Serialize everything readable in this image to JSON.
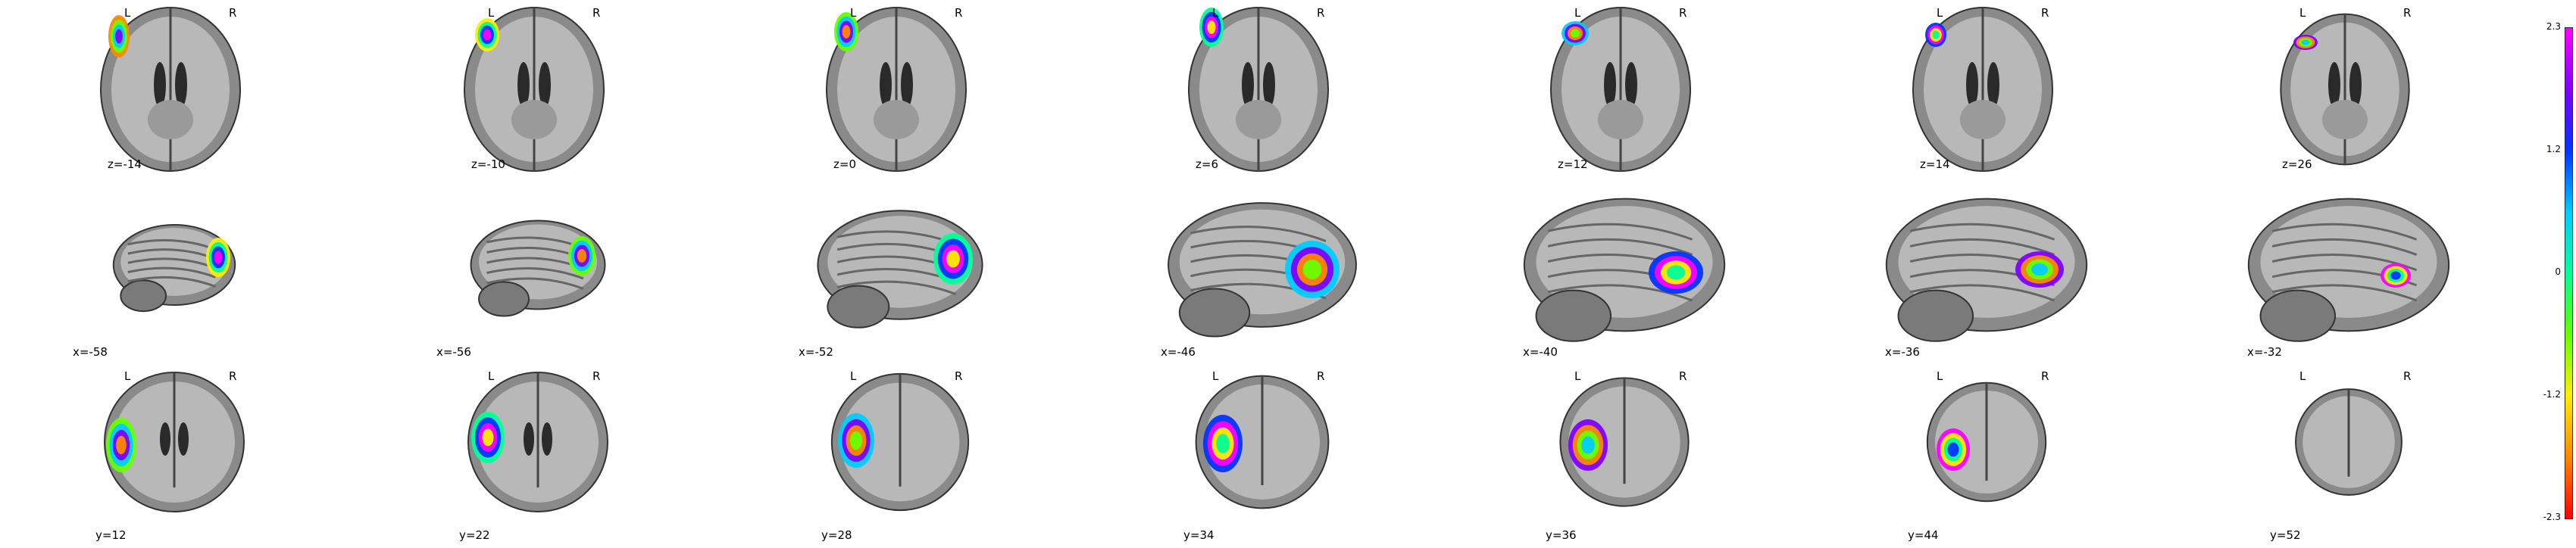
{
  "orientation_labels": {
    "left": "L",
    "right": "R"
  },
  "rows": [
    {
      "view": "axial",
      "show_lr": true,
      "cuts": [
        "z=-14",
        "z=-10",
        "z=0",
        "z=6",
        "z=12",
        "z=14",
        "z=26"
      ]
    },
    {
      "view": "sagittal",
      "show_lr": false,
      "cuts": [
        "x=-58",
        "x=-56",
        "x=-52",
        "x=-46",
        "x=-40",
        "x=-36",
        "x=-32"
      ]
    },
    {
      "view": "coronal",
      "show_lr": true,
      "cuts": [
        "y=12",
        "y=22",
        "y=28",
        "y=34",
        "y=36",
        "y=44",
        "y=52"
      ]
    }
  ],
  "colorbar": {
    "ticks": [
      "2.3",
      "1.2",
      "0",
      "-1.2",
      "-2.3"
    ],
    "colors": [
      "#ff00ff",
      "#8000ff",
      "#0033ff",
      "#00ccff",
      "#00ff99",
      "#66ff00",
      "#ffee00",
      "#ff8800",
      "#ff0000"
    ]
  }
}
